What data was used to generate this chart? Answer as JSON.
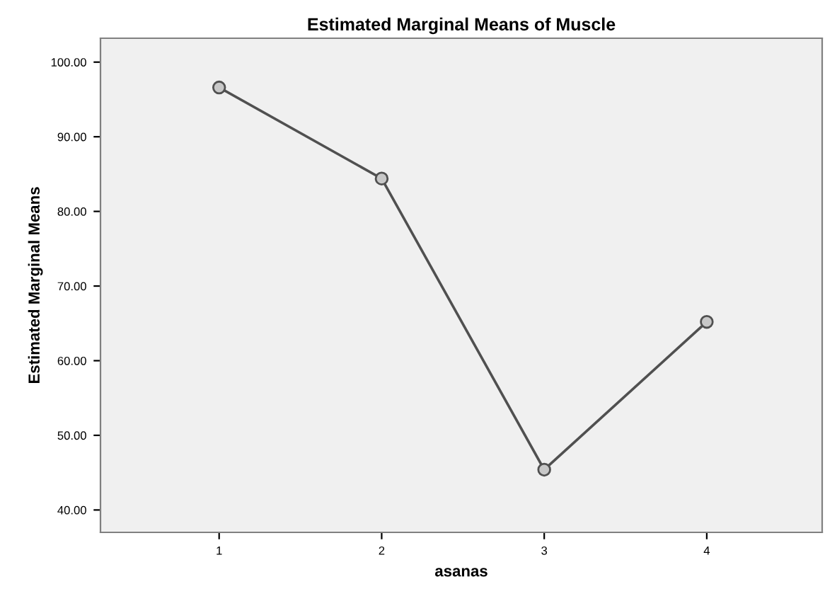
{
  "chart_data": {
    "type": "line",
    "title": "Estimated Marginal Means of Muscle",
    "xlabel": "asanas",
    "ylabel": "Estimated Marginal Means",
    "categories": [
      "1",
      "2",
      "3",
      "4"
    ],
    "series": [
      {
        "color": "#505050",
        "values": [
          96.6,
          84.4,
          45.4,
          65.2
        ]
      }
    ],
    "ylim": [
      37,
      103.2
    ],
    "yticks": [
      {
        "value": 40,
        "label": "40.00"
      },
      {
        "value": 50,
        "label": "50.00"
      },
      {
        "value": 60,
        "label": "60.00"
      },
      {
        "value": 70,
        "label": "70.00"
      },
      {
        "value": 80,
        "label": "80.00"
      },
      {
        "value": 90,
        "label": "90.00"
      },
      {
        "value": 100,
        "label": "100.00"
      }
    ],
    "grid": false,
    "marker": "circle",
    "line_style": "solid"
  }
}
